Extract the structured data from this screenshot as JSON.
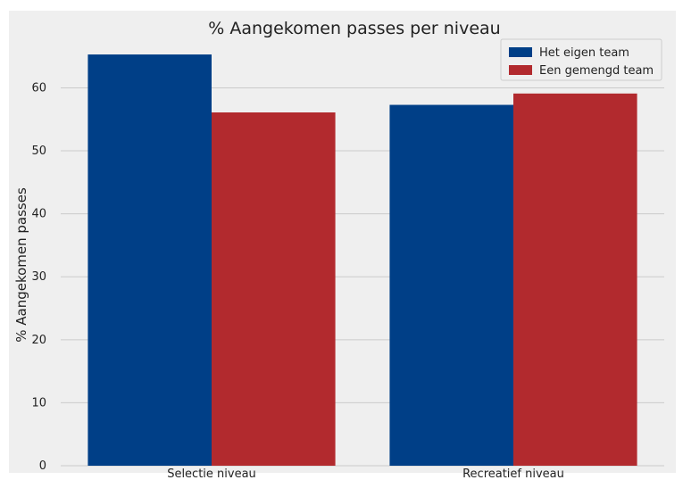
{
  "chart_data": {
    "type": "bar",
    "title": "% Aangekomen passes per niveau",
    "xlabel": "",
    "ylabel": "% Aangekomen passes",
    "categories": [
      "Selectie niveau",
      "Recreatief niveau"
    ],
    "series": [
      {
        "name": "Het eigen team",
        "color": "#003f87",
        "values": [
          65.3,
          57.3
        ]
      },
      {
        "name": "Een gemengd team",
        "color": "#b22a2e",
        "values": [
          56.1,
          59.1
        ]
      }
    ],
    "ylim": [
      0,
      68
    ],
    "yticks": [
      0,
      10,
      20,
      30,
      40,
      50,
      60
    ],
    "grid": true,
    "legend_position": "top-right"
  }
}
